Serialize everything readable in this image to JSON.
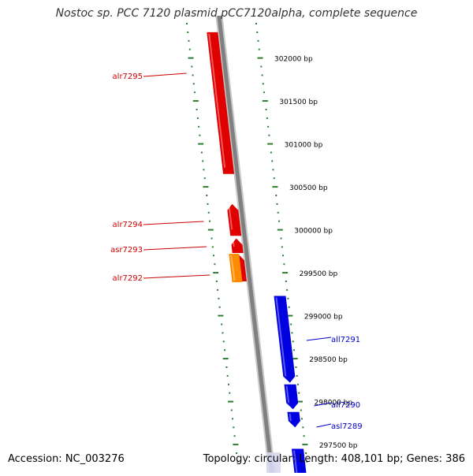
{
  "title": "Nostoc sp. PCC 7120 plasmid pCC7120alpha, complete sequence",
  "footer": {
    "accession": "Accession: NC_003276",
    "summary": "Topology: circular; Length: 408,101 bp; Genes: 386"
  },
  "colors": {
    "forward_gene": "#e00000",
    "rna_gene": "#ff8c00",
    "reverse_gene": "#0000e0",
    "backbone": "#808080",
    "tick": "#2e7d2e",
    "forward_label": "#cc0000",
    "reverse_label": "#0000cc",
    "position_label": "#000000"
  },
  "position_ticks": [
    {
      "bp": 302000,
      "label": "302000 bp"
    },
    {
      "bp": 301500,
      "label": "301500 bp"
    },
    {
      "bp": 301000,
      "label": "301000 bp"
    },
    {
      "bp": 300500,
      "label": "300500 bp"
    },
    {
      "bp": 300000,
      "label": "300000 bp"
    },
    {
      "bp": 299500,
      "label": "299500 bp"
    },
    {
      "bp": 299000,
      "label": "299000 bp"
    },
    {
      "bp": 298500,
      "label": "298500 bp"
    },
    {
      "bp": 298000,
      "label": "298000 bp"
    },
    {
      "bp": 297500,
      "label": "297500 bp"
    }
  ],
  "genes": [
    {
      "name": "alr7295",
      "strand": "forward",
      "type": "protein",
      "start": 300650,
      "end": 302300
    },
    {
      "name": "alr7294",
      "strand": "forward",
      "type": "protein",
      "start": 299930,
      "end": 300300
    },
    {
      "name": "asr7293",
      "strand": "forward",
      "type": "protein",
      "start": 299730,
      "end": 299900
    },
    {
      "name": "alr7292",
      "strand": "forward",
      "type": "protein",
      "start": 299400,
      "end": 299720
    },
    {
      "name": "",
      "strand": "forward",
      "type": "rna",
      "start": 299390,
      "end": 299720
    },
    {
      "name": "all7291",
      "strand": "reverse",
      "type": "protein",
      "start": 298220,
      "end": 299230
    },
    {
      "name": "all7290",
      "strand": "reverse",
      "type": "protein",
      "start": 297910,
      "end": 298200
    },
    {
      "name": "asl7289",
      "strand": "reverse",
      "type": "protein",
      "start": 297700,
      "end": 297880
    },
    {
      "name": "",
      "strand": "reverse",
      "type": "protein",
      "start": 297000,
      "end": 297450
    }
  ]
}
